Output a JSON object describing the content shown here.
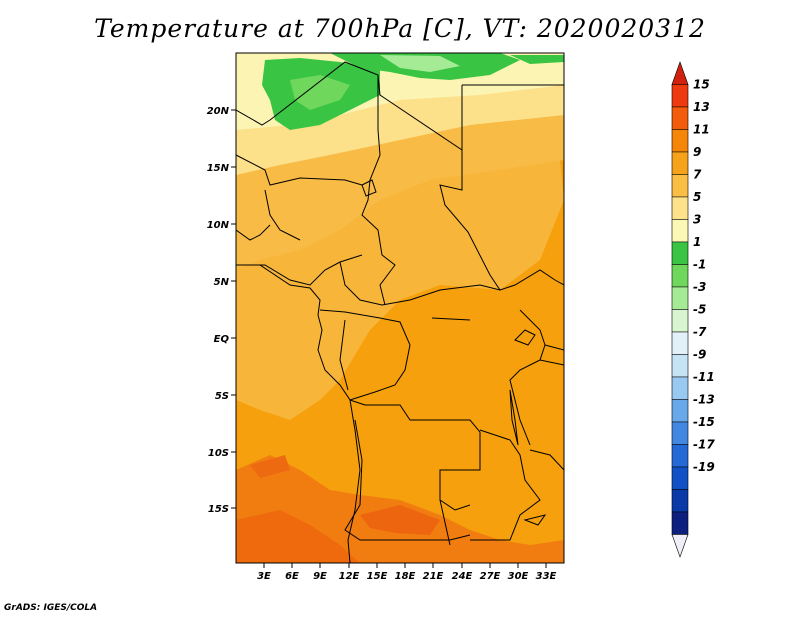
{
  "title": "Temperature at 700hPa [C], VT: 2020020312",
  "footer": "GrADS: IGES/COLA",
  "map": {
    "lat_labels": [
      "20N",
      "15N",
      "10N",
      "5N",
      "EQ",
      "5S",
      "10S",
      "15S"
    ],
    "lon_labels": [
      "3E",
      "6E",
      "9E",
      "12E",
      "15E",
      "18E",
      "21E",
      "24E",
      "27E",
      "30E",
      "33E"
    ]
  },
  "colorbar": {
    "levels": [
      "15",
      "13",
      "11",
      "9",
      "7",
      "5",
      "3",
      "1",
      "-1",
      "-3",
      "-5",
      "-7",
      "-9",
      "-11",
      "-13",
      "-15",
      "-17",
      "-19"
    ],
    "colors": [
      "#d2220f",
      "#ee3a0e",
      "#f25c0a",
      "#f5860a",
      "#f6a31b",
      "#fbbe45",
      "#fde28b",
      "#fbf7b4",
      "#39c543",
      "#6fd85c",
      "#a5ea95",
      "#d7f6d0",
      "#e2f0f8",
      "#c6e3f6",
      "#99c8f0",
      "#6aa9e9",
      "#4288e0",
      "#2469d6",
      "#1150c5",
      "#0a3aa8",
      "#0d2080",
      "#f0eef8"
    ]
  }
}
